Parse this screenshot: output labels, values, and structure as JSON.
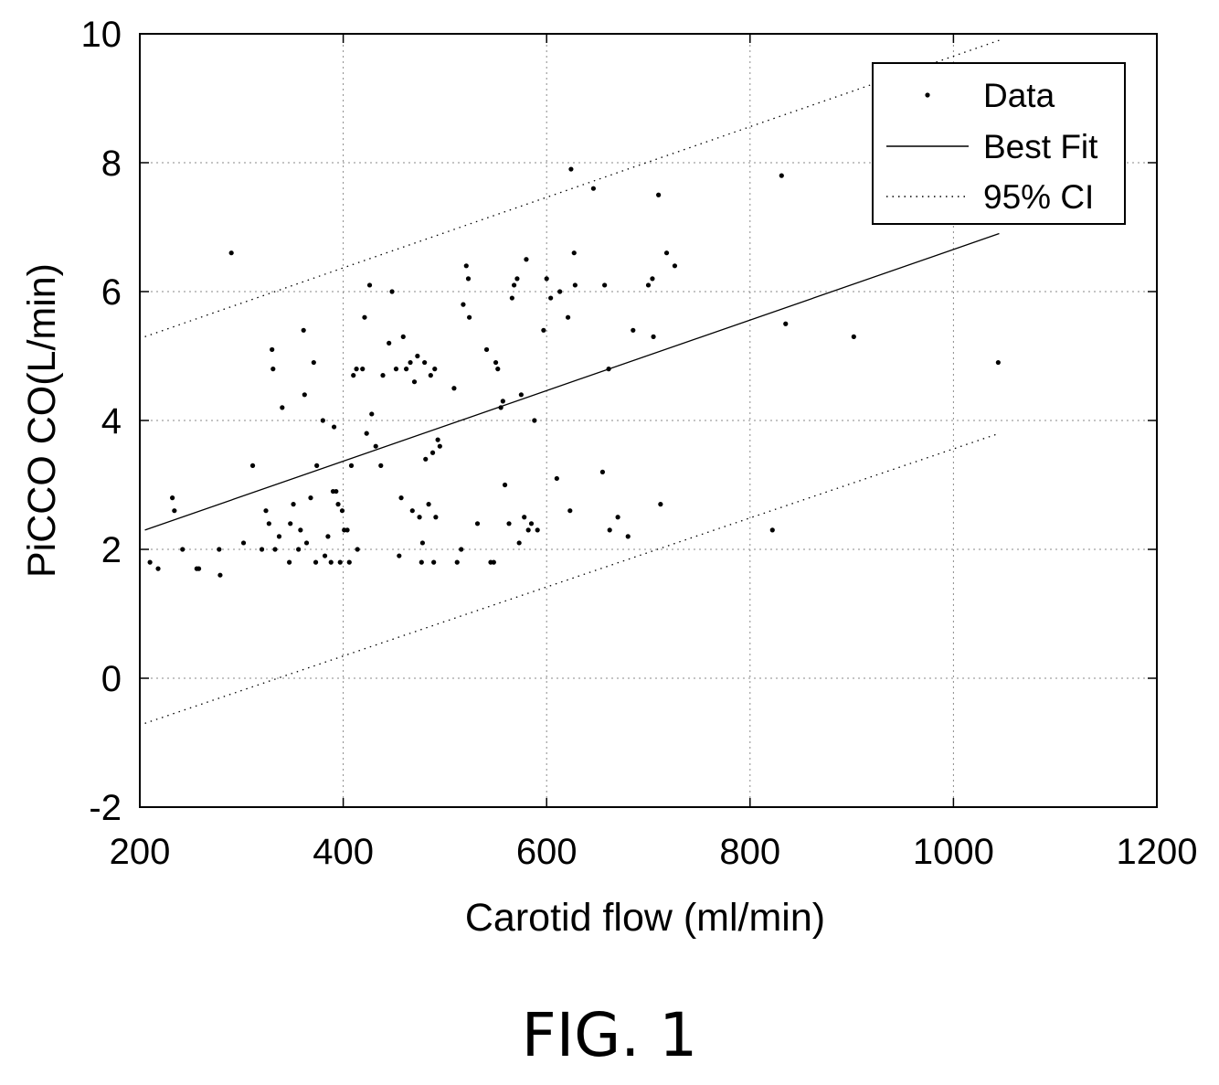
{
  "figure_caption": "FIG. 1",
  "chart_data": {
    "type": "scatter",
    "title": "",
    "xlabel": "Carotid flow (ml/min)",
    "ylabel": "PiCCO CO(L/min)",
    "xlim": [
      200,
      1200
    ],
    "ylim": [
      -2,
      10
    ],
    "xticks": [
      200,
      400,
      600,
      800,
      1000,
      1200
    ],
    "yticks": [
      -2,
      0,
      2,
      4,
      6,
      8,
      10
    ],
    "xtick_labels": [
      "200",
      "400",
      "600",
      "800",
      "1000",
      "1200"
    ],
    "ytick_labels": [
      "-2",
      "0",
      "2",
      "4",
      "6",
      "8",
      "10"
    ],
    "grid": true,
    "legend_position": "top-right",
    "legend": [
      "Data",
      "Best Fit",
      "95% CI"
    ],
    "series": [
      {
        "name": "Data",
        "type": "scatter",
        "points": [
          [
            210,
            1.8
          ],
          [
            218,
            1.7
          ],
          [
            232,
            2.8
          ],
          [
            234,
            2.6
          ],
          [
            242,
            2.0
          ],
          [
            256,
            1.7
          ],
          [
            258,
            1.7
          ],
          [
            278,
            2.0
          ],
          [
            279,
            1.6
          ],
          [
            290,
            6.6
          ],
          [
            302,
            2.1
          ],
          [
            311,
            3.3
          ],
          [
            320,
            2.0
          ],
          [
            324,
            2.6
          ],
          [
            327,
            2.4
          ],
          [
            330,
            5.1
          ],
          [
            331,
            4.8
          ],
          [
            333,
            2.0
          ],
          [
            337,
            2.2
          ],
          [
            340,
            4.2
          ],
          [
            347,
            1.8
          ],
          [
            348,
            2.4
          ],
          [
            351,
            2.7
          ],
          [
            356,
            2.0
          ],
          [
            358,
            2.3
          ],
          [
            361,
            5.4
          ],
          [
            362,
            4.4
          ],
          [
            364,
            2.1
          ],
          [
            368,
            2.8
          ],
          [
            371,
            4.9
          ],
          [
            373,
            1.8
          ],
          [
            374,
            3.3
          ],
          [
            380,
            4.0
          ],
          [
            382,
            1.9
          ],
          [
            385,
            2.2
          ],
          [
            388,
            1.8
          ],
          [
            390,
            2.9
          ],
          [
            391,
            3.9
          ],
          [
            393,
            2.9
          ],
          [
            395,
            2.7
          ],
          [
            397,
            1.8
          ],
          [
            399,
            2.6
          ],
          [
            401,
            2.3
          ],
          [
            404,
            2.3
          ],
          [
            406,
            1.8
          ],
          [
            408,
            3.3
          ],
          [
            410,
            4.7
          ],
          [
            413,
            4.8
          ],
          [
            414,
            2.0
          ],
          [
            419,
            4.8
          ],
          [
            421,
            5.6
          ],
          [
            423,
            3.8
          ],
          [
            426,
            6.1
          ],
          [
            428,
            4.1
          ],
          [
            432,
            3.6
          ],
          [
            437,
            3.3
          ],
          [
            439,
            4.7
          ],
          [
            445,
            5.2
          ],
          [
            448,
            6.0
          ],
          [
            452,
            4.8
          ],
          [
            455,
            1.9
          ],
          [
            457,
            2.8
          ],
          [
            459,
            5.3
          ],
          [
            462,
            4.8
          ],
          [
            466,
            4.9
          ],
          [
            468,
            2.6
          ],
          [
            470,
            4.6
          ],
          [
            473,
            5.0
          ],
          [
            475,
            2.5
          ],
          [
            477,
            1.8
          ],
          [
            478,
            2.1
          ],
          [
            480,
            4.9
          ],
          [
            481,
            3.4
          ],
          [
            484,
            2.7
          ],
          [
            486,
            4.7
          ],
          [
            488,
            3.5
          ],
          [
            489,
            1.8
          ],
          [
            490,
            4.8
          ],
          [
            491,
            2.5
          ],
          [
            493,
            3.7
          ],
          [
            495,
            3.6
          ],
          [
            509,
            4.5
          ],
          [
            512,
            1.8
          ],
          [
            516,
            2.0
          ],
          [
            518,
            5.8
          ],
          [
            521,
            6.4
          ],
          [
            523,
            6.2
          ],
          [
            524,
            5.6
          ],
          [
            532,
            2.4
          ],
          [
            541,
            5.1
          ],
          [
            545,
            1.8
          ],
          [
            548,
            1.8
          ],
          [
            550,
            4.9
          ],
          [
            552,
            4.8
          ],
          [
            555,
            4.2
          ],
          [
            557,
            4.3
          ],
          [
            559,
            3.0
          ],
          [
            563,
            2.4
          ],
          [
            566,
            5.9
          ],
          [
            568,
            6.1
          ],
          [
            571,
            6.2
          ],
          [
            573,
            2.1
          ],
          [
            575,
            4.4
          ],
          [
            578,
            2.5
          ],
          [
            580,
            6.5
          ],
          [
            582,
            2.3
          ],
          [
            585,
            2.4
          ],
          [
            588,
            4.0
          ],
          [
            591,
            2.3
          ],
          [
            597,
            5.4
          ],
          [
            600,
            6.2
          ],
          [
            604,
            5.9
          ],
          [
            610,
            3.1
          ],
          [
            613,
            6.0
          ],
          [
            621,
            5.6
          ],
          [
            623,
            2.6
          ],
          [
            624,
            7.9
          ],
          [
            627,
            6.6
          ],
          [
            628,
            6.1
          ],
          [
            646,
            7.6
          ],
          [
            655,
            3.2
          ],
          [
            657,
            6.1
          ],
          [
            661,
            4.8
          ],
          [
            662,
            2.3
          ],
          [
            670,
            2.5
          ],
          [
            680,
            2.2
          ],
          [
            685,
            5.4
          ],
          [
            700,
            6.1
          ],
          [
            704,
            6.2
          ],
          [
            705,
            5.3
          ],
          [
            710,
            7.5
          ],
          [
            712,
            2.7
          ],
          [
            718,
            6.6
          ],
          [
            726,
            6.4
          ],
          [
            822,
            2.3
          ],
          [
            831,
            7.8
          ],
          [
            835,
            5.5
          ],
          [
            902,
            5.3
          ],
          [
            1044,
            4.9
          ]
        ]
      },
      {
        "name": "Best Fit",
        "type": "line",
        "points": [
          [
            205,
            2.3
          ],
          [
            1045,
            6.9
          ]
        ]
      },
      {
        "name": "95% CI",
        "type": "dotted-line",
        "points": [
          [
            205,
            5.3
          ],
          [
            1045,
            9.9
          ]
        ]
      },
      {
        "name": "95% CI lower",
        "type": "dotted-line",
        "points": [
          [
            205,
            -0.7
          ],
          [
            1045,
            3.8
          ]
        ]
      }
    ]
  }
}
